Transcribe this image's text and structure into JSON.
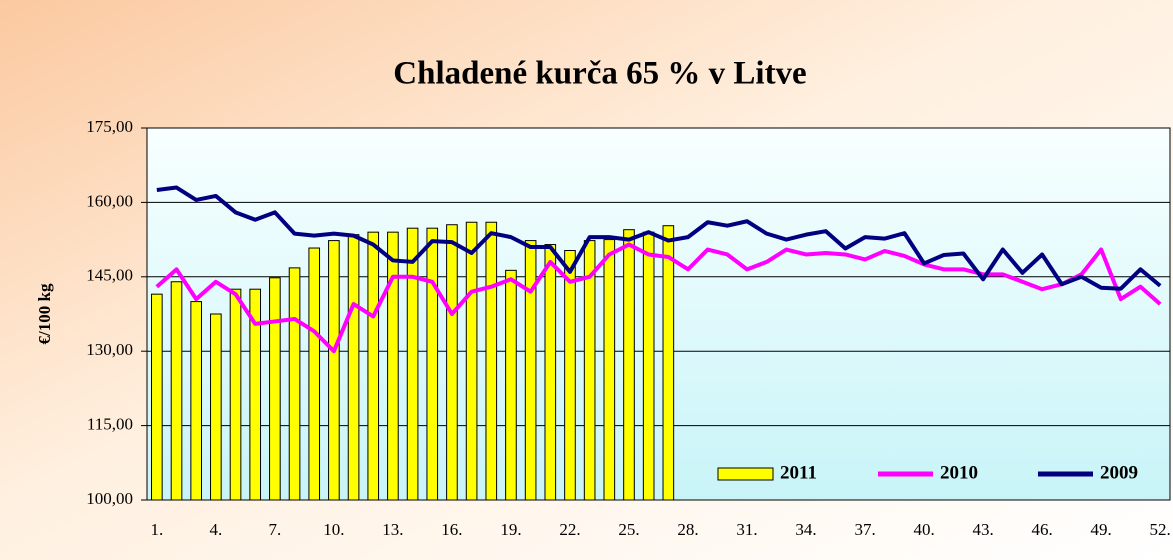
{
  "chart_data": {
    "type": "bar",
    "title": "Chladené kurča 65 % v Litve",
    "y_label": "€/100 kg",
    "categories": [
      "1.",
      null,
      null,
      "4.",
      null,
      null,
      "7.",
      null,
      null,
      "10.",
      null,
      null,
      "13.",
      null,
      null,
      "16.",
      null,
      null,
      "19.",
      null,
      null,
      "22.",
      null,
      null,
      "25.",
      null,
      null,
      "28.",
      null,
      null,
      "31.",
      null,
      null,
      "34.",
      null,
      null,
      "37.",
      null,
      null,
      "40.",
      null,
      null,
      "43.",
      null,
      null,
      "46.",
      null,
      null,
      "49.",
      null,
      null,
      "52."
    ],
    "ylim": [
      100,
      175
    ],
    "yticks": [
      {
        "value": 100,
        "label": "100,00"
      },
      {
        "value": 115,
        "label": "115,00"
      },
      {
        "value": 130,
        "label": "130,00"
      },
      {
        "value": 145,
        "label": "145,00"
      },
      {
        "value": 160,
        "label": "160,00"
      },
      {
        "value": 175,
        "label": "175,00"
      }
    ],
    "grid": true,
    "legend": "lower right",
    "series": [
      {
        "name": "2011",
        "type": "bar",
        "color": "#ffff00",
        "values": [
          141.5,
          144,
          140,
          137.5,
          142.5,
          142.5,
          144.8,
          146.8,
          150.8,
          152.3,
          153.5,
          154,
          154,
          154.8,
          154.8,
          155.5,
          156,
          156,
          146.3,
          152.3,
          151.5,
          150.3,
          152.3,
          152.5,
          154.5,
          154,
          155.3,
          null,
          null,
          null,
          null,
          null,
          null,
          null,
          null,
          null,
          null,
          null,
          null,
          null,
          null,
          null,
          null,
          null,
          null,
          null,
          null,
          null,
          null,
          null,
          null,
          null
        ]
      },
      {
        "name": "2010",
        "type": "line",
        "color": "#ff00ff",
        "values": [
          143,
          146.5,
          140.5,
          144,
          141.5,
          135.5,
          136,
          136.5,
          134,
          130,
          139.5,
          137,
          145,
          145,
          144,
          137.5,
          142,
          143,
          144.5,
          142,
          148,
          144,
          145,
          149.5,
          151.5,
          149.5,
          149,
          146.5,
          150.5,
          149.5,
          146.5,
          148,
          150.5,
          149.5,
          149.8,
          149.5,
          148.5,
          150.2,
          149.2,
          147.5,
          146.5,
          146.5,
          145.5,
          145.5,
          144,
          142.5,
          143.5,
          145.5,
          150.5,
          140.5,
          143,
          139.5
        ]
      },
      {
        "name": "2009",
        "type": "line",
        "color": "#000080",
        "values": [
          162.5,
          163,
          160.5,
          161.3,
          158,
          156.5,
          158,
          153.7,
          153.3,
          153.7,
          153.3,
          151.5,
          148.3,
          148,
          152.2,
          152,
          149.8,
          153.8,
          153,
          151,
          151,
          146,
          153,
          153,
          152.5,
          154,
          152.3,
          153,
          156,
          155.3,
          156.2,
          153.7,
          152.5,
          153.5,
          154.2,
          150.7,
          153,
          152.7,
          153.8,
          147.7,
          149.4,
          149.7,
          144.5,
          150.5,
          145.8,
          149.5,
          143.5,
          145,
          142.8,
          142.6,
          146.5,
          143.2
        ]
      }
    ]
  }
}
